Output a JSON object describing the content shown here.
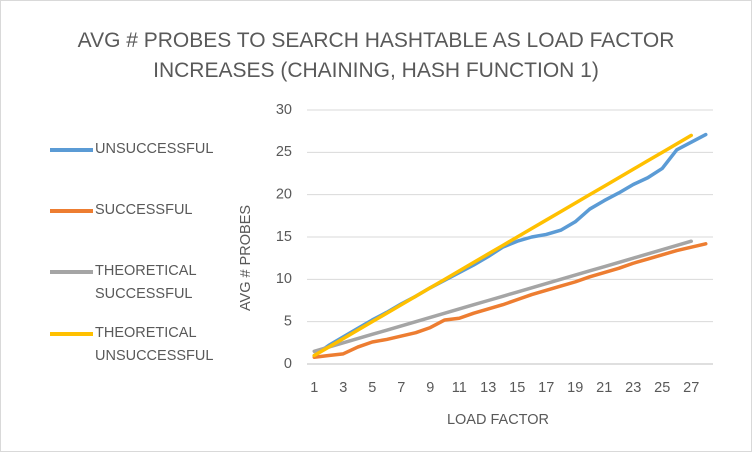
{
  "chart_data": {
    "type": "line",
    "title": "AVG # PROBES TO SEARCH HASHTABLE AS LOAD FACTOR INCREASES (CHAINING, HASH FUNCTION 1)",
    "x_label": "LOAD FACTOR",
    "y_label": "AVG # PROBES",
    "categories": [
      "1",
      null,
      "3",
      null,
      "5",
      null,
      "7",
      null,
      "9",
      null,
      "11",
      null,
      "13",
      null,
      "15",
      null,
      "17",
      null,
      "19",
      null,
      "21",
      null,
      "23",
      null,
      "25",
      null,
      "27",
      null
    ],
    "ylim": [
      0,
      30
    ],
    "yticks": [
      0,
      5,
      10,
      15,
      20,
      25,
      30
    ],
    "grid": true,
    "legend": "left",
    "series": [
      {
        "name": "UNSUCCESSFUL",
        "color": "#5b9bd5",
        "values": [
          1,
          2.2,
          3.2,
          4.2,
          5.2,
          6.1,
          7.1,
          8,
          9,
          9.9,
          10.8,
          11.7,
          12.7,
          13.8,
          14.5,
          15,
          15.3,
          15.8,
          16.8,
          18.3,
          19.3,
          20.2,
          21.2,
          22,
          23.1,
          25.3,
          26.2,
          27.1
        ]
      },
      {
        "name": "SUCCESSFUL",
        "color": "#ed7d31",
        "values": [
          0.8,
          1,
          1.2,
          2,
          2.6,
          2.9,
          3.3,
          3.7,
          4.3,
          5.2,
          5.4,
          6,
          6.5,
          7,
          7.6,
          8.2,
          8.7,
          9.2,
          9.7,
          10.3,
          10.8,
          11.3,
          11.9,
          12.4,
          12.9,
          13.4,
          13.8,
          14.2
        ]
      },
      {
        "name": "THEORETICAL SUCCESSFUL",
        "color": "#a5a5a5",
        "values": [
          1.5,
          2,
          2.5,
          3,
          3.5,
          4,
          4.5,
          5,
          5.5,
          6,
          6.5,
          7,
          7.5,
          8,
          8.5,
          9,
          9.5,
          10,
          10.5,
          11,
          11.5,
          12,
          12.5,
          13,
          13.5,
          14,
          14.5,
          null
        ]
      },
      {
        "name": "THEORETICAL UNSUCCESSFUL",
        "color": "#ffc000",
        "values": [
          1,
          2,
          3,
          4,
          5,
          6,
          7,
          8,
          9,
          10,
          11,
          12,
          13,
          14,
          15,
          16,
          17,
          18,
          19,
          20,
          21,
          22,
          23,
          24,
          25,
          26,
          27,
          null
        ]
      }
    ]
  }
}
